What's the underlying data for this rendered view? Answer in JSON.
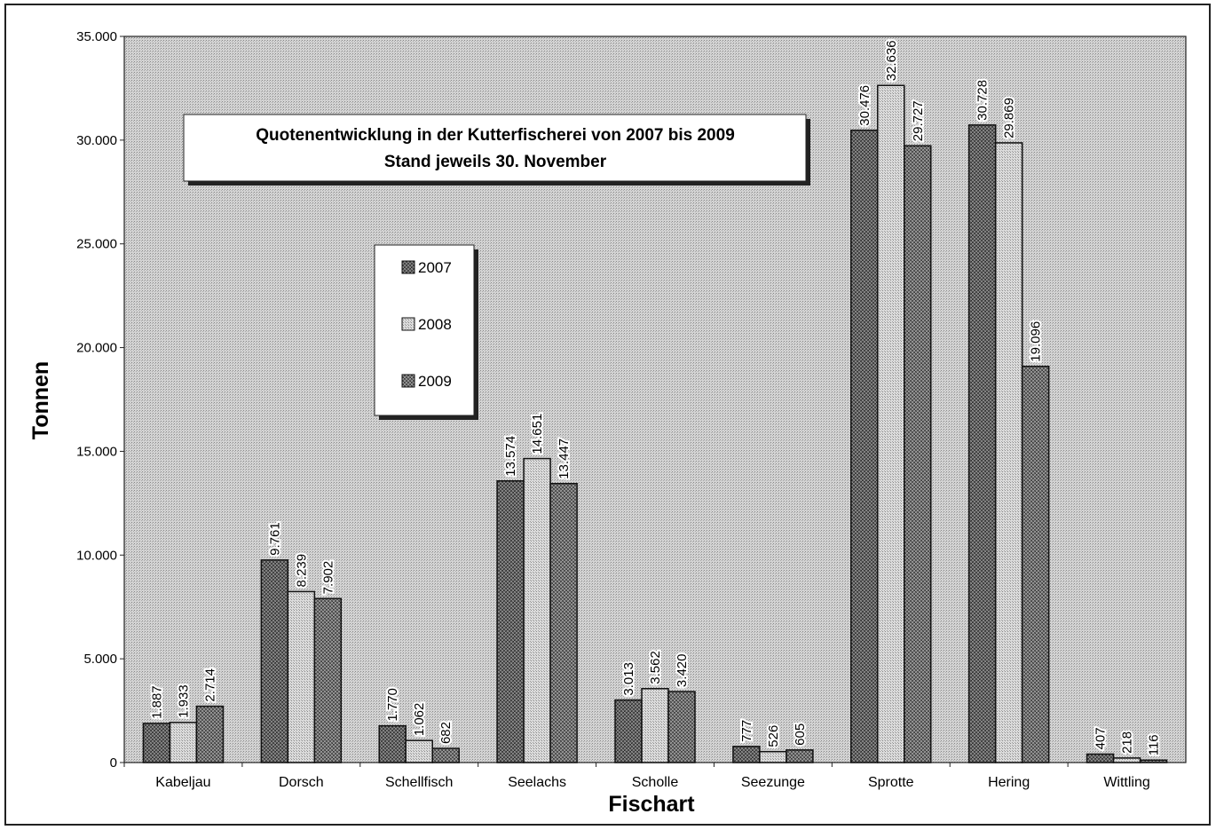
{
  "chart_data": {
    "type": "bar",
    "title": "Quotenentwicklung in der Kutterfischerei von 2007 bis 2009",
    "subtitle": "Stand jeweils 30. November",
    "xlabel": "Fischart",
    "ylabel": "Tonnen",
    "ylim": [
      0,
      35000
    ],
    "yticks": [
      "0",
      "5.000",
      "10.000",
      "15.000",
      "20.000",
      "25.000",
      "30.000",
      "35.000"
    ],
    "grid": false,
    "legend_position": "center-left",
    "categories": [
      "Kabeljau",
      "Dorsch",
      "Schellfisch",
      "Seelachs",
      "Scholle",
      "Seezunge",
      "Sprotte",
      "Hering",
      "Wittling"
    ],
    "series": [
      {
        "name": "2007",
        "values": [
          1887,
          9761,
          1770,
          13574,
          3013,
          777,
          30476,
          30728,
          407
        ],
        "labels": [
          "1.887",
          "9.761",
          "1.770",
          "13.574",
          "3.013",
          "777",
          "30.476",
          "30.728",
          "407"
        ]
      },
      {
        "name": "2008",
        "values": [
          1933,
          8239,
          1062,
          14651,
          3562,
          526,
          32636,
          29869,
          218
        ],
        "labels": [
          "1.933",
          "8.239",
          "1.062",
          "14.651",
          "3.562",
          "526",
          "32.636",
          "29.869",
          "218"
        ]
      },
      {
        "name": "2009",
        "values": [
          2714,
          7902,
          682,
          13447,
          3420,
          605,
          29727,
          19096,
          116
        ],
        "labels": [
          "2.714",
          "7.902",
          "682",
          "13.447",
          "3.420",
          "605",
          "29.727",
          "19.096",
          "116"
        ]
      }
    ]
  }
}
